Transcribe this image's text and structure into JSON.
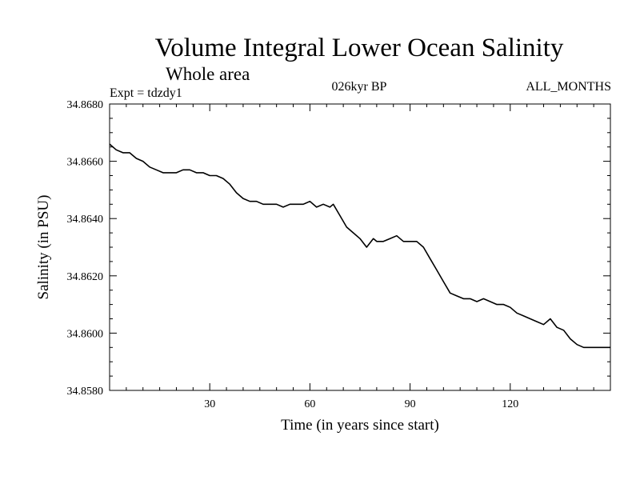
{
  "chart_data": {
    "type": "line",
    "title": "Volume Integral Lower Ocean Salinity",
    "subtitle": "Whole area",
    "experiment_label": "Expt = tdzdy1",
    "period_label": "026kyr BP",
    "months_label": "ALL_MONTHS",
    "xlabel": "Time (in years since start)",
    "ylabel": "Salinity (in PSU)",
    "xlim": [
      0,
      150
    ],
    "ylim": [
      34.858,
      34.868
    ],
    "x_ticks": [
      30,
      60,
      90,
      120
    ],
    "x_tick_labels": [
      "30",
      "60",
      "90",
      "120"
    ],
    "y_ticks": [
      34.858,
      34.86,
      34.862,
      34.864,
      34.866,
      34.868
    ],
    "y_tick_labels": [
      "34.8580",
      "34.8600",
      "34.8620",
      "34.8640",
      "34.8660",
      "34.8680"
    ],
    "grid": false,
    "series": [
      {
        "name": "Salinity",
        "color": "#000000",
        "x": [
          0,
          2,
          4,
          6,
          8,
          10,
          12,
          14,
          16,
          18,
          20,
          22,
          24,
          26,
          28,
          30,
          32,
          34,
          36,
          38,
          40,
          42,
          44,
          46,
          48,
          50,
          52,
          54,
          56,
          58,
          60,
          62,
          64,
          66,
          67,
          69,
          71,
          73,
          75,
          77,
          79,
          80,
          82,
          84,
          86,
          88,
          90,
          92,
          94,
          96,
          98,
          100,
          102,
          104,
          106,
          108,
          110,
          112,
          114,
          116,
          118,
          120,
          122,
          124,
          126,
          128,
          130,
          132,
          134,
          136,
          138,
          140,
          142,
          144,
          146,
          148,
          150
        ],
        "values": [
          34.8666,
          34.8664,
          34.8663,
          34.8663,
          34.8661,
          34.866,
          34.8658,
          34.8657,
          34.8656,
          34.8656,
          34.8656,
          34.8657,
          34.8657,
          34.8656,
          34.8656,
          34.8655,
          34.8655,
          34.8654,
          34.8652,
          34.8649,
          34.8647,
          34.8646,
          34.8646,
          34.8645,
          34.8645,
          34.8645,
          34.8644,
          34.8645,
          34.8645,
          34.8645,
          34.8646,
          34.8644,
          34.8645,
          34.8644,
          34.8645,
          34.8641,
          34.8637,
          34.8635,
          34.8633,
          34.863,
          34.8633,
          34.8632,
          34.8632,
          34.8633,
          34.8634,
          34.8632,
          34.8632,
          34.8632,
          34.863,
          34.8626,
          34.8622,
          34.8618,
          34.8614,
          34.8613,
          34.8612,
          34.8612,
          34.8611,
          34.8612,
          34.8611,
          34.861,
          34.861,
          34.8609,
          34.8607,
          34.8606,
          34.8605,
          34.8604,
          34.8603,
          34.8605,
          34.8602,
          34.8601,
          34.8598,
          34.8596,
          34.8595,
          34.8595,
          34.8595,
          34.8595,
          34.8595
        ]
      }
    ]
  }
}
